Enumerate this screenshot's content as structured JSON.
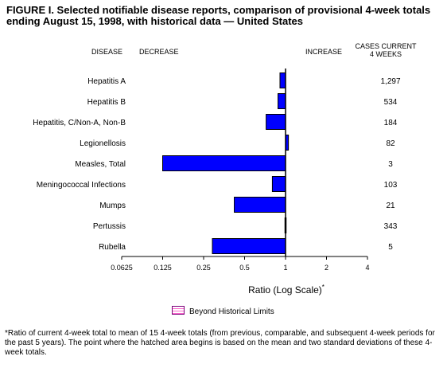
{
  "figure": {
    "title": "FIGURE I. Selected notifiable disease reports, comparison of provisional 4-week totals ending August 15, 1998, with historical data — United States"
  },
  "headers": {
    "disease": "DISEASE",
    "decrease": "DECREASE",
    "increase": "INCREASE",
    "cases_line1": "CASES CURRENT",
    "cases_line2": "4 WEEKS"
  },
  "axis": {
    "xlabel": "Ratio (Log Scale)",
    "xlabel_mark": "*"
  },
  "legend": {
    "label": "Beyond Historical Limits"
  },
  "footnote": "*Ratio of current 4-week total to mean of 15 4-week totals (from previous, comparable, and subsequent 4-week periods for the past 5 years). The point where the hatched area begins is based on the mean and two standard deviations of these 4-week totals.",
  "colors": {
    "bar": "#0000ff",
    "hatch": "#ff66cc"
  },
  "chart_data": {
    "type": "bar",
    "orientation": "horizontal",
    "x_scale": "log2",
    "xlim": [
      0.0625,
      4
    ],
    "xticks": [
      "0.0625",
      "0.125",
      "0.25",
      "0.5",
      "1",
      "2",
      "4"
    ],
    "xtick_values": [
      0.0625,
      0.125,
      0.25,
      0.5,
      1,
      2,
      4
    ],
    "baseline": 1,
    "categories": [
      "Hepatitis A",
      "Hepatitis B",
      "Hepatitis, C/Non-A, Non-B",
      "Legionellosis",
      "Measles, Total",
      "Meningococcal Infections",
      "Mumps",
      "Pertussis",
      "Rubella"
    ],
    "values": [
      0.91,
      0.88,
      0.72,
      1.05,
      0.125,
      0.8,
      0.42,
      0.99,
      0.29
    ],
    "cases": [
      "1,297",
      "534",
      "184",
      "82",
      "3",
      "103",
      "21",
      "343",
      "5"
    ],
    "grid": false
  }
}
